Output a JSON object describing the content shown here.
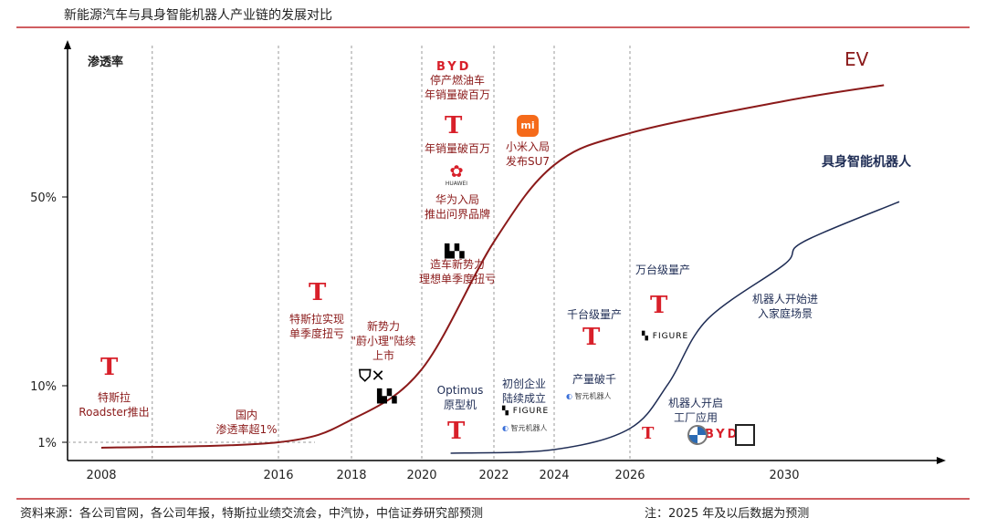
{
  "title": "新能源汽车与具身智能机器人产业链的发展对比",
  "footer": {
    "source": "资料来源：各公司官网，各公司年报，特斯拉业绩交流会，中汽协，中信证券研究部预测",
    "note": "注：2025 年及以后数据为预测"
  },
  "colors": {
    "ev": "#8b1a1a",
    "robot": "#1f2d55",
    "title_rule": "#c0282d"
  },
  "chart_data": {
    "type": "line",
    "title": "新能源汽车与具身智能机器人产业链的发展对比",
    "ylabel": "渗透率",
    "xlabel": "",
    "x_ticks": [
      "2008",
      "2016",
      "2018",
      "2020",
      "2022",
      "2024",
      "2026",
      "2030"
    ],
    "y_ticks": [
      "1%",
      "10%",
      "50%"
    ],
    "y_scale": "non-linear (illustrative)",
    "grid": "vertical dashed lines at year ticks",
    "series": [
      {
        "name": "EV",
        "x": [
          2008,
          2016,
          2018,
          2020,
          2022,
          2024,
          2026,
          2030,
          2032.6
        ],
        "y": [
          0.7,
          1,
          4.6,
          13.5,
          40.5,
          62,
          74,
          86,
          92
        ]
      },
      {
        "name": "具身智能机器人",
        "x": [
          2020.8,
          2024,
          2026,
          2027,
          2028,
          2030,
          2030.5,
          2033
        ],
        "y": [
          0.4,
          0.6,
          3.2,
          10.5,
          24,
          35.7,
          40.5,
          49
        ]
      }
    ]
  },
  "annotations": {
    "a2008": [
      "特斯拉",
      "Roadster推出"
    ],
    "a2016": [
      "国内",
      "渗透率超1%"
    ],
    "a2017": [
      "特斯拉实现",
      "单季度扭亏"
    ],
    "a2019": [
      "新势力",
      "\"蔚小理\"陆续",
      "上市"
    ],
    "a2021a": [
      "停产燃油车",
      "年销量破百万"
    ],
    "a2021b": [
      "年销量破百万"
    ],
    "a2021c": [
      "华为入局",
      "推出问界品牌"
    ],
    "a2021d": [
      "造车新势力",
      "理想单季度扭亏"
    ],
    "a2023": [
      "小米入局",
      "发布SU7"
    ],
    "optimus": [
      "Optimus",
      "原型机"
    ],
    "startup": [
      "初创企业",
      "陆续成立"
    ],
    "k1000": [
      "千台级量产"
    ],
    "prod1000": [
      "产量破千"
    ],
    "k10000": [
      "万台级量产"
    ],
    "home": [
      "机器人开始进",
      "入家庭场景"
    ],
    "factory": [
      "机器人开启",
      "工厂应用"
    ]
  },
  "logos": {
    "byd": "BYD",
    "huawei": "HUAWEI",
    "figure": "FIGURE",
    "agibot": "智元机器人",
    "xiaomi": "mi",
    "tesla_small": "TESLA"
  }
}
